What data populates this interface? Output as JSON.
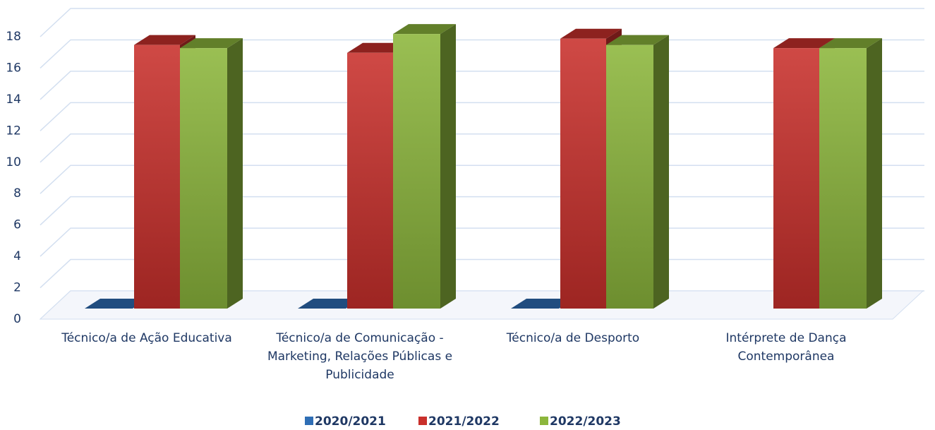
{
  "chart_data": {
    "type": "bar3d",
    "categories": [
      "Técnico/a de Ação Educativa",
      "Técnico/a de Comunicação - Marketing, Relações Públicas e Publicidade",
      "Técnico/a de Desporto",
      "Intérprete de Dança Contemporânea"
    ],
    "series": [
      {
        "name": "2020/2021",
        "color": "#2f6eb5",
        "values": [
          0,
          0,
          0,
          null
        ]
      },
      {
        "name": "2021/2022",
        "color": "#c9302c",
        "values": [
          16.8,
          16.3,
          17.2,
          16.6
        ]
      },
      {
        "name": "2022/2023",
        "color": "#8cb63c",
        "values": [
          16.6,
          17.5,
          16.8,
          16.6
        ]
      }
    ],
    "ylim": [
      0,
      18
    ],
    "yticks": [
      0,
      2,
      4,
      6,
      8,
      10,
      12,
      14,
      16,
      18
    ],
    "grid": true,
    "legend": "bottom"
  }
}
